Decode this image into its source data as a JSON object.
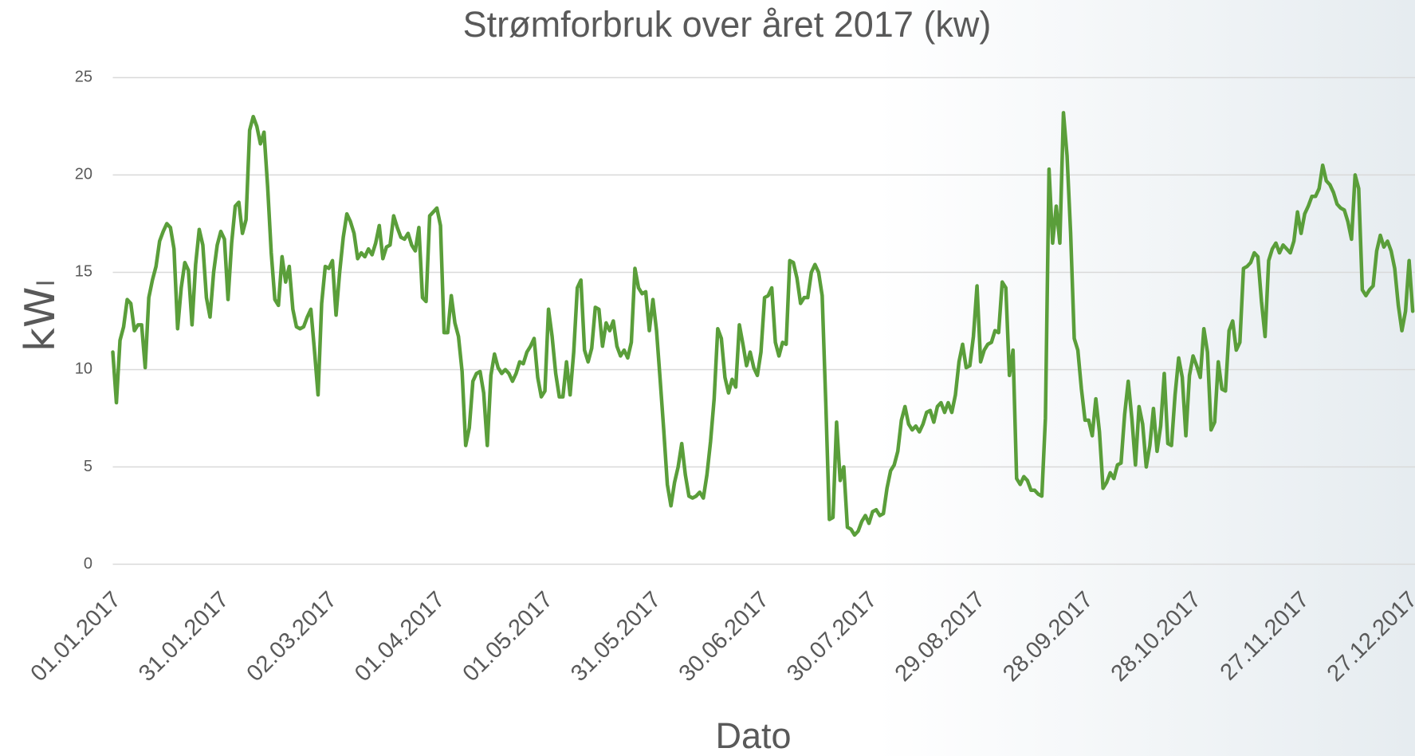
{
  "chart_data": {
    "type": "line",
    "title": "Strømforbruk over året 2017 (kw)",
    "x_label": "Dato",
    "y_label": "kWₗ",
    "categories": [
      "01.01.2017",
      null,
      null,
      null,
      null,
      null,
      null,
      null,
      null,
      null,
      null,
      null,
      null,
      null,
      null,
      null,
      null,
      null,
      null,
      null,
      null,
      null,
      null,
      null,
      null,
      null,
      null,
      null,
      null,
      null,
      "31.01.2017",
      null,
      null,
      null,
      null,
      null,
      null,
      null,
      null,
      null,
      null,
      null,
      null,
      null,
      null,
      null,
      null,
      null,
      null,
      null,
      null,
      null,
      null,
      null,
      null,
      null,
      null,
      null,
      null,
      null,
      "02.03.2017",
      null,
      null,
      null,
      null,
      null,
      null,
      null,
      null,
      null,
      null,
      null,
      null,
      null,
      null,
      null,
      null,
      null,
      null,
      null,
      null,
      null,
      null,
      null,
      null,
      null,
      null,
      null,
      null,
      null,
      "01.04.2017",
      null,
      null,
      null,
      null,
      null,
      null,
      null,
      null,
      null,
      null,
      null,
      null,
      null,
      null,
      null,
      null,
      null,
      null,
      null,
      null,
      null,
      null,
      null,
      null,
      null,
      null,
      null,
      null,
      null,
      "01.05.2017",
      null,
      null,
      null,
      null,
      null,
      null,
      null,
      null,
      null,
      null,
      null,
      null,
      null,
      null,
      null,
      null,
      null,
      null,
      null,
      null,
      null,
      null,
      null,
      null,
      null,
      null,
      null,
      null,
      null,
      "31.05.2017",
      null,
      null,
      null,
      null,
      null,
      null,
      null,
      null,
      null,
      null,
      null,
      null,
      null,
      null,
      null,
      null,
      null,
      null,
      null,
      null,
      null,
      null,
      null,
      null,
      null,
      null,
      null,
      null,
      null,
      "30.06.2017",
      null,
      null,
      null,
      null,
      null,
      null,
      null,
      null,
      null,
      null,
      null,
      null,
      null,
      null,
      null,
      null,
      null,
      null,
      null,
      null,
      null,
      null,
      null,
      null,
      null,
      null,
      null,
      null,
      null,
      "30.07.2017",
      null,
      null,
      null,
      null,
      null,
      null,
      null,
      null,
      null,
      null,
      null,
      null,
      null,
      null,
      null,
      null,
      null,
      null,
      null,
      null,
      null,
      null,
      null,
      null,
      null,
      null,
      null,
      null,
      null,
      "29.08.2017",
      null,
      null,
      null,
      null,
      null,
      null,
      null,
      null,
      null,
      null,
      null,
      null,
      null,
      null,
      null,
      null,
      null,
      null,
      null,
      null,
      null,
      null,
      null,
      null,
      null,
      null,
      null,
      null,
      null,
      "28.09.2017",
      null,
      null,
      null,
      null,
      null,
      null,
      null,
      null,
      null,
      null,
      null,
      null,
      null,
      null,
      null,
      null,
      null,
      null,
      null,
      null,
      null,
      null,
      null,
      null,
      null,
      null,
      null,
      null,
      null,
      "28.10.2017",
      null,
      null,
      null,
      null,
      null,
      null,
      null,
      null,
      null,
      null,
      null,
      null,
      null,
      null,
      null,
      null,
      null,
      null,
      null,
      null,
      null,
      null,
      null,
      null,
      null,
      null,
      null,
      null,
      null,
      "27.11.2017",
      null,
      null,
      null,
      null,
      null,
      null,
      null,
      null,
      null,
      null,
      null,
      null,
      null,
      null,
      null,
      null,
      null,
      null,
      null,
      null,
      null,
      null,
      null,
      null,
      null,
      null,
      null,
      null,
      null,
      "27.12.2017",
      null
    ],
    "series": [
      {
        "name": "kWₗ",
        "color": "#5a9e3a",
        "values": [
          10.9,
          8.3,
          11.5,
          12.2,
          13.6,
          13.4,
          12.0,
          12.3,
          12.3,
          10.1,
          13.7,
          14.6,
          15.3,
          16.6,
          17.1,
          17.5,
          17.3,
          16.2,
          12.1,
          14.2,
          15.5,
          15.1,
          12.3,
          15.4,
          17.2,
          16.4,
          13.7,
          12.7,
          15.0,
          16.4,
          17.1,
          16.7,
          13.6,
          16.5,
          18.4,
          18.6,
          17.0,
          17.7,
          22.3,
          23.0,
          22.5,
          21.6,
          22.2,
          19.4,
          16.0,
          13.6,
          13.3,
          15.8,
          14.5,
          15.3,
          13.1,
          12.2,
          12.1,
          12.2,
          12.7,
          13.1,
          11.0,
          8.7,
          13.4,
          15.3,
          15.2,
          15.6,
          12.8,
          15.0,
          16.8,
          18.0,
          17.6,
          17.0,
          15.7,
          16.0,
          15.8,
          16.2,
          15.9,
          16.5,
          17.4,
          15.7,
          16.3,
          16.4,
          17.9,
          17.3,
          16.8,
          16.7,
          17.0,
          16.4,
          16.1,
          17.3,
          13.7,
          13.5,
          17.9,
          18.1,
          18.3,
          17.4,
          11.9,
          11.9,
          13.8,
          12.4,
          11.7,
          9.9,
          6.1,
          7.0,
          9.4,
          9.8,
          9.9,
          8.8,
          6.1,
          9.7,
          10.8,
          10.1,
          9.8,
          10.0,
          9.8,
          9.4,
          9.8,
          10.4,
          10.3,
          10.9,
          11.2,
          11.6,
          9.6,
          8.6,
          8.9,
          13.1,
          11.7,
          9.8,
          8.6,
          8.6,
          10.4,
          8.7,
          10.9,
          14.2,
          14.6,
          11.0,
          10.4,
          11.1,
          13.2,
          13.1,
          11.2,
          12.4,
          12.0,
          12.5,
          11.2,
          10.7,
          11.0,
          10.6,
          11.4,
          15.2,
          14.2,
          13.9,
          14.0,
          12.0,
          13.6,
          12.0,
          9.5,
          6.9,
          4.1,
          3.0,
          4.2,
          5.0,
          6.2,
          4.6,
          3.5,
          3.4,
          3.5,
          3.7,
          3.4,
          4.6,
          6.3,
          8.5,
          12.1,
          11.6,
          9.6,
          8.8,
          9.5,
          9.1,
          12.3,
          11.3,
          10.2,
          10.9,
          10.1,
          9.7,
          10.9,
          13.7,
          13.8,
          14.2,
          11.4,
          10.7,
          11.4,
          11.3,
          15.6,
          15.5,
          14.7,
          13.4,
          13.7,
          13.7,
          15.0,
          15.4,
          15.0,
          13.8,
          8.3,
          2.3,
          2.4,
          7.3,
          4.3,
          5.0,
          1.9,
          1.8,
          1.5,
          1.7,
          2.2,
          2.5,
          2.1,
          2.7,
          2.8,
          2.5,
          2.6,
          3.9,
          4.8,
          5.1,
          5.8,
          7.4,
          8.1,
          7.2,
          6.9,
          7.1,
          6.8,
          7.2,
          7.8,
          7.9,
          7.3,
          8.1,
          8.3,
          7.8,
          8.3,
          7.8,
          8.7,
          10.4,
          11.3,
          10.1,
          10.2,
          11.7,
          14.3,
          10.4,
          11.0,
          11.3,
          11.4,
          12.0,
          11.9,
          14.5,
          14.2,
          9.7,
          11.0,
          4.4,
          4.1,
          4.5,
          4.3,
          3.8,
          3.8,
          3.6,
          3.5,
          7.5,
          20.3,
          16.5,
          18.4,
          16.5,
          23.2,
          21.0,
          17.0,
          11.6,
          11.0,
          9.0,
          7.4,
          7.4,
          6.6,
          8.5,
          6.8,
          3.9,
          4.2,
          4.7,
          4.4,
          5.1,
          5.2,
          7.7,
          9.4,
          7.5,
          5.1,
          8.1,
          7.2,
          5.0,
          6.1,
          8.0,
          5.8,
          7.1,
          9.8,
          6.2,
          6.1,
          8.7,
          10.6,
          9.6,
          6.6,
          9.7,
          10.7,
          10.2,
          9.6,
          12.1,
          10.9,
          6.9,
          7.3,
          10.4,
          9.0,
          8.9,
          12.0,
          12.5,
          11.0,
          11.4,
          15.2,
          15.3,
          15.5,
          16.0,
          15.8,
          13.5,
          11.7,
          15.6,
          16.2,
          16.5,
          16.0,
          16.4,
          16.2,
          16.0,
          16.6,
          18.1,
          17.0,
          18.0,
          18.4,
          18.9,
          18.9,
          19.3,
          20.5,
          19.7,
          19.5,
          19.1,
          18.5,
          18.3,
          18.2,
          17.6,
          16.7,
          20.0,
          19.3,
          14.1,
          13.8,
          14.1,
          14.3,
          16.1,
          16.9,
          16.3,
          16.6,
          16.1,
          15.2,
          13.3,
          12.0,
          13.0,
          15.6,
          13.0
        ]
      }
    ],
    "ylim": [
      0,
      25
    ],
    "yticks": [
      0,
      5,
      10,
      15,
      20,
      25
    ],
    "grid": true,
    "legend": false
  }
}
